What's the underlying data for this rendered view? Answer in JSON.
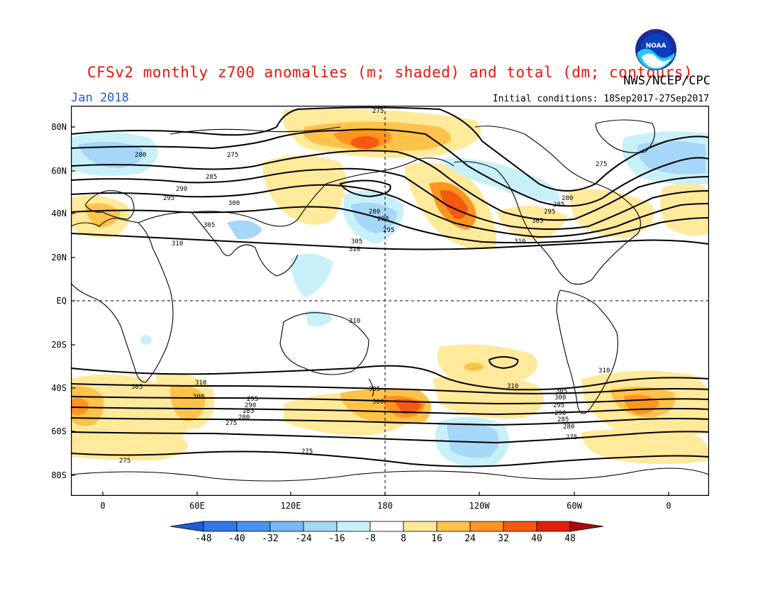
{
  "header": {
    "title": "CFSv2 monthly z700 anomalies (m; shaded) and total (dm; contours)",
    "agency": "NWS/NCEP/CPC",
    "month": "Jan 2018",
    "initial_conditions": "Initial conditions: 18Sep2017-27Sep2017",
    "logo_text": "NOAA"
  },
  "axes": {
    "lat_labels": [
      "80N",
      "60N",
      "40N",
      "20N",
      "EQ",
      "20S",
      "40S",
      "60S",
      "80S"
    ],
    "lon_labels": [
      "0",
      "60E",
      "120E",
      "180",
      "120W",
      "60W",
      "0"
    ]
  },
  "colorbar": {
    "labels": [
      "-48",
      "-40",
      "-32",
      "-24",
      "-16",
      "-8",
      "8",
      "16",
      "24",
      "32",
      "40",
      "48"
    ],
    "colors": [
      "#1a5fd8",
      "#2f78e6",
      "#4a92f0",
      "#7ab8f5",
      "#a6d6f8",
      "#c8f0f8",
      "#ffffff",
      "#ffe99a",
      "#ffc24a",
      "#ff9420",
      "#f55a10",
      "#e0200c",
      "#b0080a"
    ]
  },
  "contour_labels": [
    "275",
    "280",
    "285",
    "290",
    "295",
    "300",
    "305",
    "310"
  ]
}
